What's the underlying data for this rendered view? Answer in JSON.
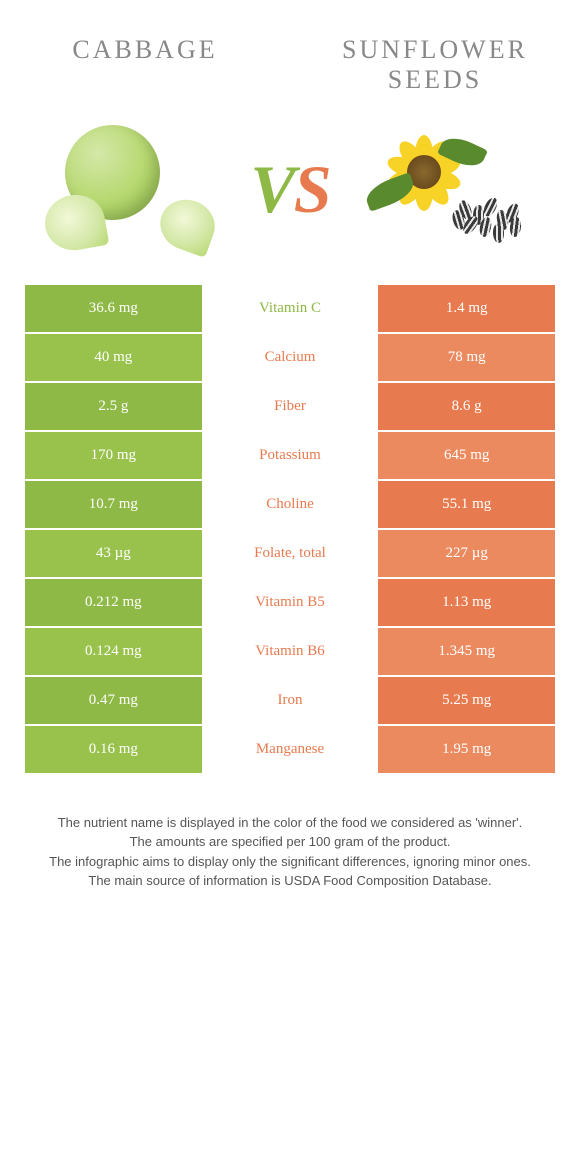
{
  "colors": {
    "left": "#8fb946",
    "right": "#e77a4f",
    "left_alt": "#99c24d",
    "right_alt": "#eb8a5f",
    "cabbage_light": "#d4e8a8",
    "cabbage_mid": "#b8d973",
    "cabbage_dark": "#8fb946",
    "sun_petal": "#f7d328",
    "sun_center": "#6b4a1e",
    "sun_leaf": "#5a8a2e",
    "seed_dark": "#3a3a3a",
    "seed_stripe": "#e8e8e8"
  },
  "header": {
    "left": "Cabbage",
    "right": "Sunflower seeds"
  },
  "vs": {
    "v": "V",
    "s": "S"
  },
  "rows": [
    {
      "left": "36.6 mg",
      "label": "Vitamin C",
      "right": "1.4 mg",
      "winner": "left"
    },
    {
      "left": "40 mg",
      "label": "Calcium",
      "right": "78 mg",
      "winner": "right"
    },
    {
      "left": "2.5 g",
      "label": "Fiber",
      "right": "8.6 g",
      "winner": "right"
    },
    {
      "left": "170 mg",
      "label": "Potassium",
      "right": "645 mg",
      "winner": "right"
    },
    {
      "left": "10.7 mg",
      "label": "Choline",
      "right": "55.1 mg",
      "winner": "right"
    },
    {
      "left": "43 µg",
      "label": "Folate, total",
      "right": "227 µg",
      "winner": "right"
    },
    {
      "left": "0.212 mg",
      "label": "Vitamin B5",
      "right": "1.13 mg",
      "winner": "right"
    },
    {
      "left": "0.124 mg",
      "label": "Vitamin B6",
      "right": "1.345 mg",
      "winner": "right"
    },
    {
      "left": "0.47 mg",
      "label": "Iron",
      "right": "5.25 mg",
      "winner": "right"
    },
    {
      "left": "0.16 mg",
      "label": "Manganese",
      "right": "1.95 mg",
      "winner": "right"
    }
  ],
  "footnotes": [
    "The nutrient name is displayed in the color of the food we considered as 'winner'.",
    "The amounts are specified per 100 gram of the product.",
    "The infographic aims to display only the significant differences, ignoring minor ones.",
    "The main source of information is USDA Food Composition Database."
  ]
}
